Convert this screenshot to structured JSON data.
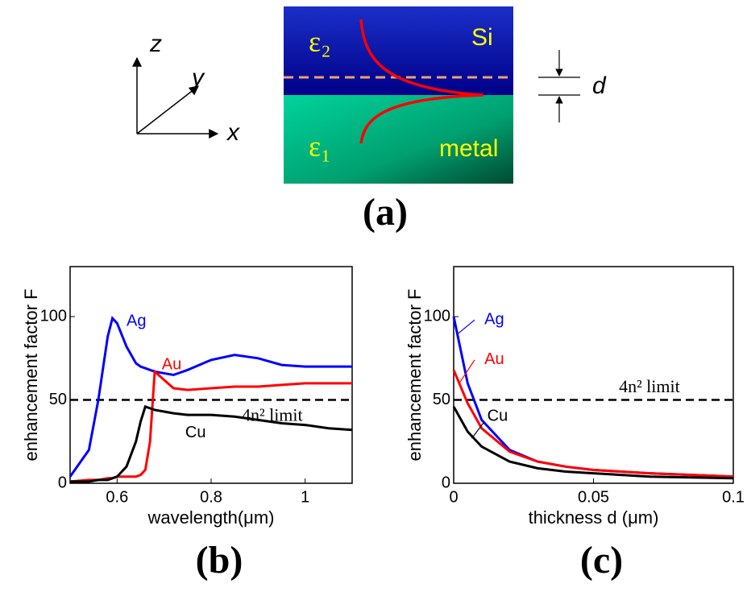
{
  "diagram": {
    "axis_z": "z",
    "axis_y": "y",
    "axis_x": "x",
    "eps2": "ε₂",
    "upper": "Si",
    "eps1": "ε₁",
    "lower": "metal",
    "thickness": "d",
    "label": "(a)"
  },
  "chart_data": [
    {
      "type": "line",
      "label": "(b)",
      "xlabel": "wavelength(μm)",
      "ylabel": "enhancement factor F",
      "x": [
        0.5,
        0.54,
        0.56,
        0.58,
        0.59,
        0.6,
        0.62,
        0.64,
        0.65,
        0.66,
        0.67,
        0.68,
        0.7,
        0.72,
        0.75,
        0.8,
        0.85,
        0.9,
        0.95,
        1,
        1.05,
        1.1
      ],
      "series": [
        {
          "name": "Ag",
          "color": "#0000ff",
          "values": [
            4,
            20,
            50,
            88,
            99,
            96,
            82,
            72,
            70,
            69,
            68,
            67,
            66,
            65,
            68,
            74,
            77,
            75,
            71,
            70,
            70,
            70
          ]
        },
        {
          "name": "Au",
          "color": "#ff0000",
          "values": [
            1,
            2,
            2,
            3,
            3,
            4,
            4,
            4,
            5,
            8,
            25,
            67,
            62,
            57,
            56,
            57,
            58,
            58,
            59,
            60,
            60,
            60
          ]
        },
        {
          "name": "Cu",
          "color": "#000000",
          "values": [
            1,
            1,
            2,
            2,
            3,
            4,
            10,
            25,
            37,
            46,
            45,
            44,
            43,
            42,
            41,
            41,
            40,
            38,
            36,
            35,
            33,
            32
          ]
        }
      ],
      "hline": 50,
      "hline_label": "4n² limit",
      "xlim": [
        0.5,
        1.1
      ],
      "xticks": [
        0.6,
        0.8,
        1
      ],
      "ylim": [
        0,
        130
      ],
      "yticks": [
        0,
        50,
        100
      ]
    },
    {
      "type": "line",
      "label": "(c)",
      "xlabel": "thickness d (μm)",
      "ylabel": "enhancement factor F",
      "x": [
        0,
        0.005,
        0.01,
        0.02,
        0.03,
        0.04,
        0.05,
        0.07,
        0.1
      ],
      "series": [
        {
          "name": "Ag",
          "color": "#0000ff",
          "values": [
            100,
            60,
            38,
            20,
            13,
            10,
            8,
            6,
            4
          ]
        },
        {
          "name": "Au",
          "color": "#ff0000",
          "values": [
            68,
            48,
            33,
            19,
            13,
            10,
            8,
            6,
            4
          ]
        },
        {
          "name": "Cu",
          "color": "#000000",
          "values": [
            46,
            31,
            22,
            13,
            9,
            7,
            6,
            4,
            3
          ]
        }
      ],
      "hline": 50,
      "hline_label": "4n² limit",
      "xlim": [
        0,
        0.1
      ],
      "xticks": [
        0,
        0.05,
        0.1
      ],
      "ylim": [
        0,
        130
      ],
      "yticks": [
        0,
        50,
        100
      ]
    }
  ]
}
